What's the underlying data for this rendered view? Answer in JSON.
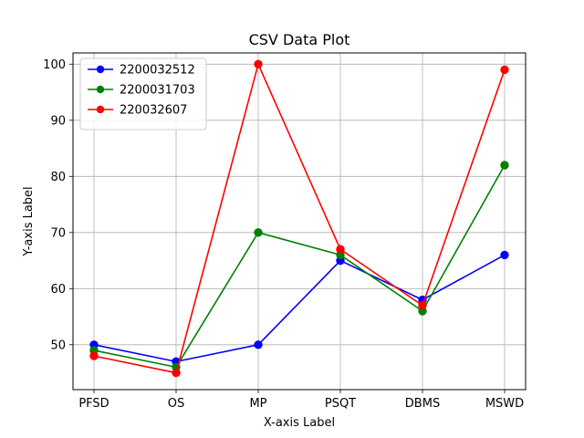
{
  "chart_data": {
    "type": "line",
    "title": "CSV Data Plot",
    "xlabel": "X-axis Label",
    "ylabel": "Y-axis Label",
    "categories": [
      "PFSD",
      "OS",
      "MP",
      "PSQT",
      "DBMS",
      "MSWD"
    ],
    "ylim": [
      42,
      102
    ],
    "yticks": [
      50,
      60,
      70,
      80,
      90,
      100
    ],
    "grid": true,
    "legend_position": "top-left",
    "series": [
      {
        "name": "2200032512",
        "color": "#0000ff",
        "values": [
          50,
          47,
          50,
          65,
          58,
          66
        ]
      },
      {
        "name": "2200031703",
        "color": "#008000",
        "values": [
          49,
          46,
          70,
          66,
          56,
          82
        ]
      },
      {
        "name": "220032607",
        "color": "#ff0000",
        "values": [
          48,
          45,
          100,
          67,
          57,
          99
        ]
      }
    ]
  }
}
